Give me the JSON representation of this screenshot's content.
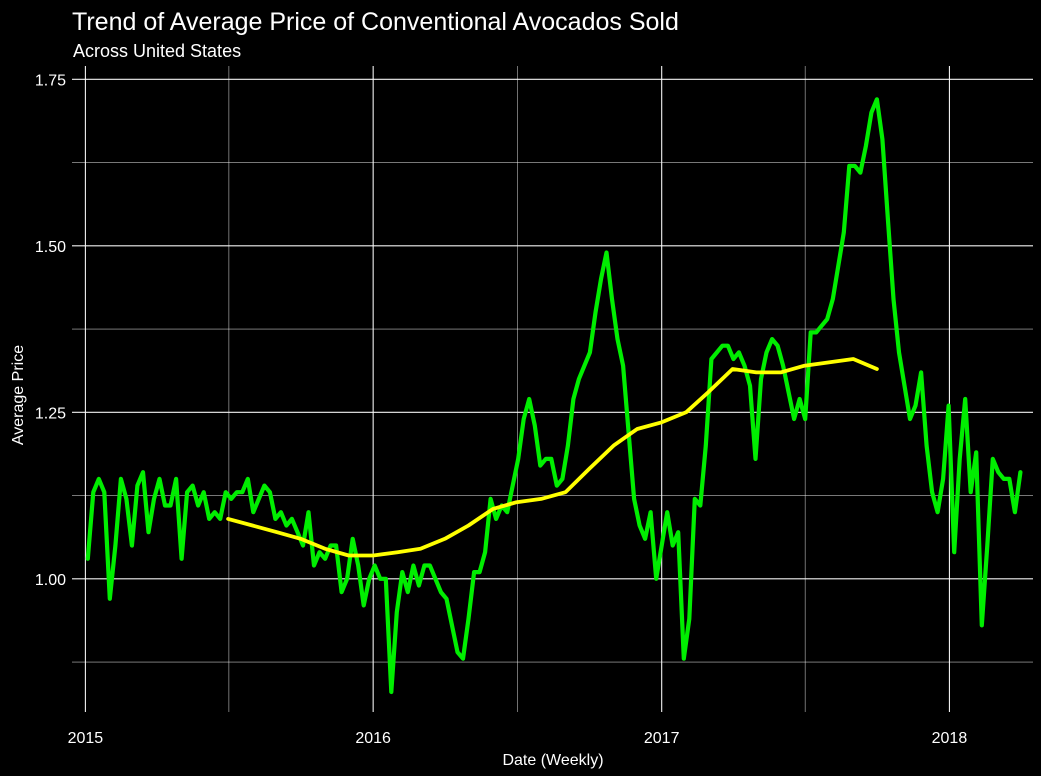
{
  "chart_data": {
    "type": "line",
    "title": "Trend of Average Price of Conventional Avocados Sold",
    "subtitle": "Across United States",
    "xlabel": "Date (Weekly)",
    "ylabel": "Average Price",
    "x_ticks": [
      "2015",
      "2016",
      "2017",
      "2018"
    ],
    "y_ticks": [
      "1.00",
      "1.25",
      "1.50",
      "1.75"
    ],
    "xlim": [
      "2014-12-15",
      "2018-04-17"
    ],
    "ylim": [
      0.8,
      1.77
    ],
    "grid": true,
    "colors": {
      "background": "#000000",
      "grid": "#ffffff",
      "text": "#ffffff",
      "price_line": "#00ee00",
      "trend_line": "#ffff00"
    },
    "series": [
      {
        "role": "weekly",
        "points": [
          [
            "2015-01-04",
            1.03
          ],
          [
            "2015-01-11",
            1.13
          ],
          [
            "2015-01-18",
            1.15
          ],
          [
            "2015-01-25",
            1.13
          ],
          [
            "2015-02-01",
            0.97
          ],
          [
            "2015-02-08",
            1.05
          ],
          [
            "2015-02-15",
            1.15
          ],
          [
            "2015-02-22",
            1.12
          ],
          [
            "2015-03-01",
            1.05
          ],
          [
            "2015-03-08",
            1.14
          ],
          [
            "2015-03-15",
            1.16
          ],
          [
            "2015-03-22",
            1.07
          ],
          [
            "2015-03-29",
            1.12
          ],
          [
            "2015-04-05",
            1.15
          ],
          [
            "2015-04-12",
            1.11
          ],
          [
            "2015-04-19",
            1.11
          ],
          [
            "2015-04-26",
            1.15
          ],
          [
            "2015-05-03",
            1.03
          ],
          [
            "2015-05-10",
            1.13
          ],
          [
            "2015-05-17",
            1.14
          ],
          [
            "2015-05-24",
            1.11
          ],
          [
            "2015-05-31",
            1.13
          ],
          [
            "2015-06-07",
            1.09
          ],
          [
            "2015-06-14",
            1.1
          ],
          [
            "2015-06-21",
            1.09
          ],
          [
            "2015-06-28",
            1.13
          ],
          [
            "2015-07-05",
            1.12
          ],
          [
            "2015-07-12",
            1.13
          ],
          [
            "2015-07-19",
            1.13
          ],
          [
            "2015-07-26",
            1.15
          ],
          [
            "2015-08-02",
            1.1
          ],
          [
            "2015-08-09",
            1.12
          ],
          [
            "2015-08-16",
            1.14
          ],
          [
            "2015-08-23",
            1.13
          ],
          [
            "2015-08-30",
            1.09
          ],
          [
            "2015-09-06",
            1.1
          ],
          [
            "2015-09-13",
            1.08
          ],
          [
            "2015-09-20",
            1.09
          ],
          [
            "2015-09-27",
            1.07
          ],
          [
            "2015-10-04",
            1.05
          ],
          [
            "2015-10-11",
            1.1
          ],
          [
            "2015-10-18",
            1.02
          ],
          [
            "2015-10-25",
            1.04
          ],
          [
            "2015-11-01",
            1.03
          ],
          [
            "2015-11-08",
            1.05
          ],
          [
            "2015-11-15",
            1.05
          ],
          [
            "2015-11-22",
            0.98
          ],
          [
            "2015-11-29",
            1.0
          ],
          [
            "2015-12-06",
            1.06
          ],
          [
            "2015-12-13",
            1.02
          ],
          [
            "2015-12-20",
            0.96
          ],
          [
            "2015-12-27",
            1.0
          ],
          [
            "2016-01-03",
            1.02
          ],
          [
            "2016-01-10",
            1.0
          ],
          [
            "2016-01-17",
            1.0
          ],
          [
            "2016-01-24",
            0.83
          ],
          [
            "2016-01-31",
            0.95
          ],
          [
            "2016-02-07",
            1.01
          ],
          [
            "2016-02-14",
            0.98
          ],
          [
            "2016-02-21",
            1.02
          ],
          [
            "2016-02-28",
            0.99
          ],
          [
            "2016-03-06",
            1.02
          ],
          [
            "2016-03-13",
            1.02
          ],
          [
            "2016-03-20",
            1.0
          ],
          [
            "2016-03-27",
            0.98
          ],
          [
            "2016-04-03",
            0.97
          ],
          [
            "2016-04-10",
            0.93
          ],
          [
            "2016-04-17",
            0.89
          ],
          [
            "2016-04-24",
            0.88
          ],
          [
            "2016-05-01",
            0.94
          ],
          [
            "2016-05-08",
            1.01
          ],
          [
            "2016-05-15",
            1.01
          ],
          [
            "2016-05-22",
            1.04
          ],
          [
            "2016-05-29",
            1.12
          ],
          [
            "2016-06-05",
            1.09
          ],
          [
            "2016-06-12",
            1.11
          ],
          [
            "2016-06-19",
            1.1
          ],
          [
            "2016-06-26",
            1.14
          ],
          [
            "2016-07-03",
            1.18
          ],
          [
            "2016-07-10",
            1.24
          ],
          [
            "2016-07-17",
            1.27
          ],
          [
            "2016-07-24",
            1.23
          ],
          [
            "2016-07-31",
            1.17
          ],
          [
            "2016-08-07",
            1.18
          ],
          [
            "2016-08-14",
            1.18
          ],
          [
            "2016-08-21",
            1.14
          ],
          [
            "2016-08-28",
            1.15
          ],
          [
            "2016-09-04",
            1.2
          ],
          [
            "2016-09-11",
            1.27
          ],
          [
            "2016-09-18",
            1.3
          ],
          [
            "2016-09-25",
            1.32
          ],
          [
            "2016-10-02",
            1.34
          ],
          [
            "2016-10-09",
            1.4
          ],
          [
            "2016-10-16",
            1.45
          ],
          [
            "2016-10-23",
            1.49
          ],
          [
            "2016-10-30",
            1.42
          ],
          [
            "2016-11-06",
            1.36
          ],
          [
            "2016-11-13",
            1.32
          ],
          [
            "2016-11-20",
            1.22
          ],
          [
            "2016-11-27",
            1.12
          ],
          [
            "2016-12-04",
            1.08
          ],
          [
            "2016-12-11",
            1.06
          ],
          [
            "2016-12-18",
            1.1
          ],
          [
            "2016-12-25",
            1.0
          ],
          [
            "2017-01-01",
            1.05
          ],
          [
            "2017-01-08",
            1.1
          ],
          [
            "2017-01-15",
            1.05
          ],
          [
            "2017-01-22",
            1.07
          ],
          [
            "2017-01-29",
            0.88
          ],
          [
            "2017-02-05",
            0.94
          ],
          [
            "2017-02-12",
            1.12
          ],
          [
            "2017-02-19",
            1.11
          ],
          [
            "2017-02-26",
            1.2
          ],
          [
            "2017-03-05",
            1.33
          ],
          [
            "2017-03-12",
            1.34
          ],
          [
            "2017-03-19",
            1.35
          ],
          [
            "2017-03-26",
            1.35
          ],
          [
            "2017-04-02",
            1.33
          ],
          [
            "2017-04-09",
            1.34
          ],
          [
            "2017-04-16",
            1.32
          ],
          [
            "2017-04-23",
            1.29
          ],
          [
            "2017-04-30",
            1.18
          ],
          [
            "2017-05-07",
            1.3
          ],
          [
            "2017-05-14",
            1.34
          ],
          [
            "2017-05-21",
            1.36
          ],
          [
            "2017-05-28",
            1.35
          ],
          [
            "2017-06-04",
            1.32
          ],
          [
            "2017-06-11",
            1.28
          ],
          [
            "2017-06-18",
            1.24
          ],
          [
            "2017-06-25",
            1.27
          ],
          [
            "2017-07-02",
            1.24
          ],
          [
            "2017-07-09",
            1.37
          ],
          [
            "2017-07-16",
            1.37
          ],
          [
            "2017-07-23",
            1.38
          ],
          [
            "2017-07-30",
            1.39
          ],
          [
            "2017-08-06",
            1.42
          ],
          [
            "2017-08-13",
            1.47
          ],
          [
            "2017-08-20",
            1.52
          ],
          [
            "2017-08-27",
            1.62
          ],
          [
            "2017-09-03",
            1.62
          ],
          [
            "2017-09-10",
            1.61
          ],
          [
            "2017-09-17",
            1.65
          ],
          [
            "2017-09-24",
            1.7
          ],
          [
            "2017-10-01",
            1.72
          ],
          [
            "2017-10-08",
            1.66
          ],
          [
            "2017-10-15",
            1.54
          ],
          [
            "2017-10-22",
            1.42
          ],
          [
            "2017-10-29",
            1.34
          ],
          [
            "2017-11-05",
            1.29
          ],
          [
            "2017-11-12",
            1.24
          ],
          [
            "2017-11-19",
            1.26
          ],
          [
            "2017-11-26",
            1.31
          ],
          [
            "2017-12-03",
            1.2
          ],
          [
            "2017-12-10",
            1.13
          ],
          [
            "2017-12-17",
            1.1
          ],
          [
            "2017-12-24",
            1.15
          ],
          [
            "2017-12-31",
            1.26
          ],
          [
            "2018-01-07",
            1.04
          ],
          [
            "2018-01-14",
            1.18
          ],
          [
            "2018-01-21",
            1.27
          ],
          [
            "2018-01-28",
            1.13
          ],
          [
            "2018-02-04",
            1.19
          ],
          [
            "2018-02-11",
            0.93
          ],
          [
            "2018-02-18",
            1.05
          ],
          [
            "2018-02-25",
            1.18
          ],
          [
            "2018-03-04",
            1.16
          ],
          [
            "2018-03-11",
            1.15
          ],
          [
            "2018-03-18",
            1.15
          ],
          [
            "2018-03-25",
            1.1
          ],
          [
            "2018-04-01",
            1.16
          ]
        ]
      },
      {
        "role": "trend",
        "points": [
          [
            "2015-07-01",
            1.09
          ],
          [
            "2015-08-01",
            1.08
          ],
          [
            "2015-09-01",
            1.07
          ],
          [
            "2015-10-01",
            1.06
          ],
          [
            "2015-11-01",
            1.045
          ],
          [
            "2015-12-01",
            1.035
          ],
          [
            "2016-01-01",
            1.035
          ],
          [
            "2016-02-01",
            1.04
          ],
          [
            "2016-03-01",
            1.045
          ],
          [
            "2016-04-01",
            1.06
          ],
          [
            "2016-05-01",
            1.08
          ],
          [
            "2016-06-01",
            1.105
          ],
          [
            "2016-07-01",
            1.115
          ],
          [
            "2016-08-01",
            1.12
          ],
          [
            "2016-09-01",
            1.13
          ],
          [
            "2016-10-01",
            1.165
          ],
          [
            "2016-11-01",
            1.2
          ],
          [
            "2016-12-01",
            1.225
          ],
          [
            "2017-01-01",
            1.235
          ],
          [
            "2017-02-01",
            1.25
          ],
          [
            "2017-03-01",
            1.28
          ],
          [
            "2017-04-01",
            1.315
          ],
          [
            "2017-05-01",
            1.31
          ],
          [
            "2017-06-01",
            1.31
          ],
          [
            "2017-07-01",
            1.32
          ],
          [
            "2017-08-01",
            1.325
          ],
          [
            "2017-09-01",
            1.33
          ],
          [
            "2017-10-01",
            1.315
          ]
        ]
      }
    ]
  }
}
